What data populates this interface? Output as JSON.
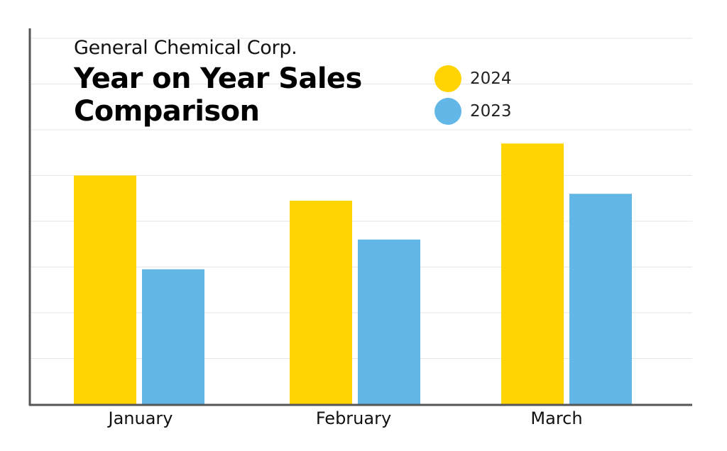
{
  "header": {
    "subtitle": "General Chemical Corp.",
    "title": "Year on Year Sales Comparison"
  },
  "chart_data": {
    "type": "bar",
    "categories": [
      "January",
      "February",
      "March"
    ],
    "series": [
      {
        "name": "2024",
        "color": "#FFD400",
        "values": [
          5.0,
          4.45,
          5.7
        ]
      },
      {
        "name": "2023",
        "color": "#63B7E6",
        "values": [
          2.95,
          3.6,
          4.6
        ]
      }
    ],
    "title": "Year on Year Sales Comparison",
    "subtitle": "General Chemical Corp.",
    "xlabel": "",
    "ylabel": "",
    "ylim": [
      0,
      8
    ],
    "yticks_labeled": false,
    "grid": true,
    "legend_position": "top-right",
    "gridline_color": "#e6e6e6",
    "axis_color": "#555555"
  }
}
